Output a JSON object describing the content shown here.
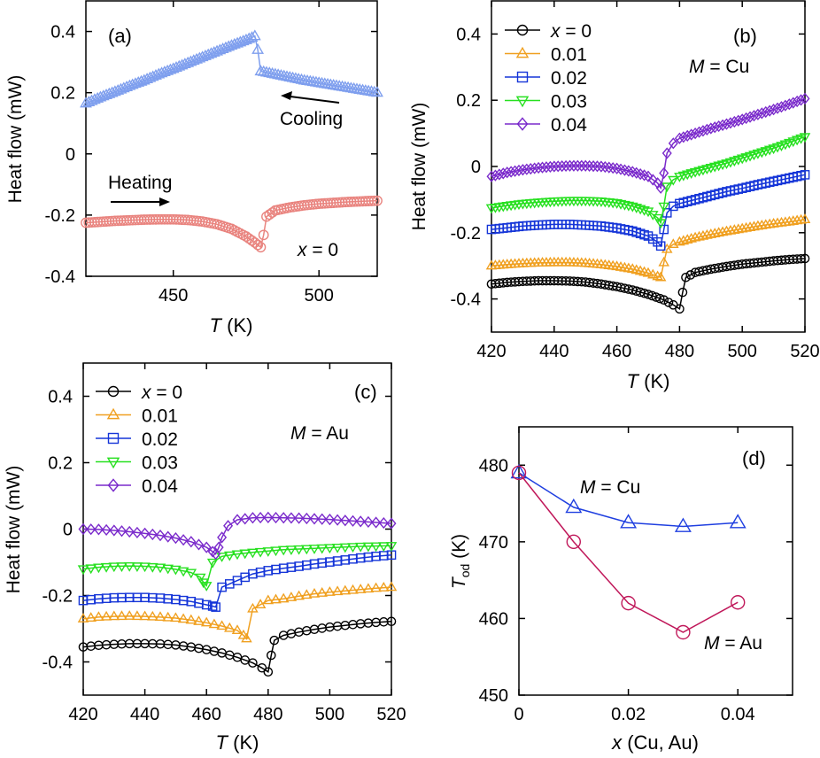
{
  "colors": {
    "heat": "#e9847f",
    "cool": "#7f9fee",
    "x0": "#000000",
    "x01": "#f0a020",
    "x02": "#1535d8",
    "x03": "#27e020",
    "x04": "#7a2acb",
    "cu": "#1f3fe0",
    "au": "#c0185a"
  },
  "chart_data": [
    {
      "type": "line",
      "title": "(a)",
      "xlabel": "T (K)",
      "ylabel": "Heat flow (mW)",
      "xlim": [
        420,
        520
      ],
      "ylim": [
        -0.4,
        0.5
      ],
      "xticks": [
        "450",
        "500"
      ],
      "yticks": [
        "-0.4",
        "-0.2",
        "0",
        "0.2",
        "0.4"
      ],
      "annotations": [
        "Heating",
        "Cooling",
        "x = 0"
      ],
      "series": [
        {
          "name": "Heating",
          "color": "#e9847f",
          "marker": "circle",
          "x": [
            420,
            425,
            430,
            435,
            440,
            445,
            450,
            455,
            460,
            465,
            470,
            475,
            478,
            480,
            481,
            482,
            485,
            490,
            495,
            500,
            505,
            510,
            515,
            520
          ],
          "y": [
            -0.225,
            -0.222,
            -0.219,
            -0.217,
            -0.215,
            -0.214,
            -0.214,
            -0.216,
            -0.221,
            -0.23,
            -0.245,
            -0.27,
            -0.29,
            -0.305,
            -0.265,
            -0.205,
            -0.185,
            -0.175,
            -0.168,
            -0.163,
            -0.16,
            -0.157,
            -0.155,
            -0.153
          ]
        },
        {
          "name": "Cooling",
          "color": "#7f9fee",
          "marker": "triangle-up",
          "x": [
            420,
            425,
            430,
            435,
            440,
            445,
            450,
            455,
            460,
            465,
            470,
            475,
            477,
            478,
            479,
            480,
            485,
            490,
            495,
            500,
            505,
            510,
            515,
            520
          ],
          "y": [
            0.165,
            0.185,
            0.203,
            0.222,
            0.24,
            0.26,
            0.278,
            0.297,
            0.316,
            0.335,
            0.354,
            0.372,
            0.38,
            0.385,
            0.34,
            0.27,
            0.26,
            0.25,
            0.24,
            0.232,
            0.224,
            0.216,
            0.208,
            0.2
          ]
        }
      ]
    },
    {
      "type": "line",
      "title": "(b)",
      "xlabel": "T (K)",
      "ylabel": "Heat flow (mW)",
      "xlim": [
        420,
        520
      ],
      "ylim": [
        -0.5,
        0.5
      ],
      "xticks": [
        "420",
        "440",
        "460",
        "480",
        "500",
        "520"
      ],
      "yticks": [
        "-0.4",
        "-0.2",
        "0",
        "0.2",
        "0.4"
      ],
      "annotations": [
        "M = Cu"
      ],
      "legend": [
        "x = 0",
        "0.01",
        "0.02",
        "0.03",
        "0.04"
      ],
      "series": [
        {
          "name": "x = 0",
          "color": "#000000",
          "marker": "circle",
          "x": [
            420,
            425,
            430,
            435,
            440,
            445,
            450,
            455,
            460,
            465,
            470,
            475,
            478,
            480,
            481,
            482,
            485,
            490,
            495,
            500,
            505,
            510,
            515,
            520
          ],
          "y": [
            -0.355,
            -0.35,
            -0.347,
            -0.345,
            -0.345,
            -0.346,
            -0.349,
            -0.355,
            -0.363,
            -0.373,
            -0.386,
            -0.403,
            -0.418,
            -0.43,
            -0.38,
            -0.335,
            -0.32,
            -0.31,
            -0.302,
            -0.295,
            -0.29,
            -0.285,
            -0.281,
            -0.278
          ]
        },
        {
          "name": "0.01",
          "color": "#f0a020",
          "marker": "triangle-up",
          "x": [
            420,
            425,
            430,
            435,
            440,
            445,
            450,
            455,
            460,
            465,
            470,
            473,
            474,
            475,
            476,
            478,
            480,
            485,
            490,
            495,
            500,
            505,
            510,
            515,
            520
          ],
          "y": [
            -0.3,
            -0.296,
            -0.293,
            -0.291,
            -0.29,
            -0.29,
            -0.292,
            -0.296,
            -0.302,
            -0.31,
            -0.322,
            -0.332,
            -0.335,
            -0.29,
            -0.25,
            -0.235,
            -0.228,
            -0.215,
            -0.205,
            -0.196,
            -0.188,
            -0.18,
            -0.173,
            -0.167,
            -0.16
          ]
        },
        {
          "name": "0.02",
          "color": "#1535d8",
          "marker": "square",
          "x": [
            420,
            425,
            430,
            435,
            440,
            445,
            450,
            455,
            460,
            465,
            470,
            473,
            474,
            475,
            476,
            478,
            480,
            485,
            490,
            495,
            500,
            505,
            510,
            515,
            520
          ],
          "y": [
            -0.19,
            -0.185,
            -0.18,
            -0.177,
            -0.175,
            -0.175,
            -0.177,
            -0.18,
            -0.186,
            -0.195,
            -0.21,
            -0.228,
            -0.24,
            -0.19,
            -0.14,
            -0.12,
            -0.112,
            -0.1,
            -0.088,
            -0.076,
            -0.066,
            -0.055,
            -0.045,
            -0.035,
            -0.025
          ]
        },
        {
          "name": "0.03",
          "color": "#27e020",
          "marker": "triangle-down",
          "x": [
            420,
            425,
            430,
            435,
            440,
            445,
            450,
            455,
            460,
            465,
            470,
            473,
            474,
            475,
            476,
            478,
            480,
            485,
            490,
            495,
            500,
            505,
            510,
            515,
            520
          ],
          "y": [
            -0.125,
            -0.118,
            -0.112,
            -0.108,
            -0.105,
            -0.103,
            -0.103,
            -0.105,
            -0.11,
            -0.12,
            -0.135,
            -0.155,
            -0.17,
            -0.12,
            -0.06,
            -0.04,
            -0.03,
            -0.016,
            -0.003,
            0.01,
            0.025,
            0.04,
            0.055,
            0.072,
            0.09
          ]
        },
        {
          "name": "0.04",
          "color": "#7a2acb",
          "marker": "diamond",
          "x": [
            420,
            425,
            430,
            435,
            440,
            445,
            450,
            455,
            460,
            465,
            470,
            473,
            474,
            475,
            476,
            478,
            480,
            485,
            490,
            495,
            500,
            505,
            510,
            515,
            520
          ],
          "y": [
            -0.03,
            -0.018,
            -0.01,
            -0.004,
            0.0,
            0.002,
            0.002,
            0.0,
            -0.006,
            -0.016,
            -0.03,
            -0.05,
            -0.065,
            -0.02,
            0.04,
            0.07,
            0.085,
            0.1,
            0.115,
            0.128,
            0.142,
            0.157,
            0.172,
            0.188,
            0.205
          ]
        }
      ]
    },
    {
      "type": "line",
      "title": "(c)",
      "xlabel": "T (K)",
      "ylabel": "Heat flow (mW)",
      "xlim": [
        420,
        520
      ],
      "ylim": [
        -0.5,
        0.5
      ],
      "xticks": [
        "420",
        "440",
        "460",
        "480",
        "500",
        "520"
      ],
      "yticks": [
        "-0.4",
        "-0.2",
        "0",
        "0.2",
        "0.4"
      ],
      "annotations": [
        "M = Au"
      ],
      "legend": [
        "x = 0",
        "0.01",
        "0.02",
        "0.03",
        "0.04"
      ],
      "series": [
        {
          "name": "x = 0",
          "color": "#000000",
          "marker": "circle",
          "x": [
            420,
            425,
            430,
            435,
            440,
            445,
            450,
            455,
            460,
            465,
            470,
            475,
            478,
            480,
            481,
            482,
            485,
            490,
            495,
            500,
            505,
            510,
            515,
            520
          ],
          "y": [
            -0.355,
            -0.35,
            -0.347,
            -0.345,
            -0.345,
            -0.346,
            -0.349,
            -0.355,
            -0.363,
            -0.373,
            -0.386,
            -0.403,
            -0.418,
            -0.43,
            -0.38,
            -0.335,
            -0.32,
            -0.31,
            -0.302,
            -0.295,
            -0.29,
            -0.285,
            -0.281,
            -0.278
          ]
        },
        {
          "name": "0.01",
          "color": "#f0a020",
          "marker": "triangle-up",
          "x": [
            420,
            425,
            430,
            435,
            440,
            445,
            450,
            455,
            460,
            465,
            470,
            472,
            473,
            475,
            480,
            485,
            490,
            495,
            500,
            505,
            510,
            515,
            520
          ],
          "y": [
            -0.27,
            -0.265,
            -0.263,
            -0.262,
            -0.263,
            -0.265,
            -0.268,
            -0.274,
            -0.282,
            -0.292,
            -0.305,
            -0.32,
            -0.33,
            -0.24,
            -0.215,
            -0.21,
            -0.202,
            -0.195,
            -0.19,
            -0.186,
            -0.182,
            -0.178,
            -0.175
          ]
        },
        {
          "name": "0.02",
          "color": "#1535d8",
          "marker": "square",
          "x": [
            420,
            425,
            430,
            435,
            440,
            445,
            450,
            455,
            460,
            462,
            463,
            465,
            470,
            475,
            480,
            485,
            490,
            495,
            500,
            505,
            510,
            515,
            520
          ],
          "y": [
            -0.215,
            -0.21,
            -0.207,
            -0.206,
            -0.206,
            -0.208,
            -0.212,
            -0.218,
            -0.228,
            -0.232,
            -0.235,
            -0.175,
            -0.155,
            -0.135,
            -0.125,
            -0.118,
            -0.112,
            -0.105,
            -0.099,
            -0.093,
            -0.087,
            -0.082,
            -0.078
          ]
        },
        {
          "name": "0.03",
          "color": "#27e020",
          "marker": "triangle-down",
          "x": [
            420,
            425,
            430,
            435,
            440,
            445,
            450,
            455,
            458,
            459,
            460,
            462,
            465,
            470,
            475,
            480,
            485,
            490,
            495,
            500,
            505,
            510,
            515,
            520
          ],
          "y": [
            -0.12,
            -0.115,
            -0.112,
            -0.111,
            -0.112,
            -0.115,
            -0.121,
            -0.131,
            -0.145,
            -0.16,
            -0.17,
            -0.1,
            -0.082,
            -0.075,
            -0.07,
            -0.066,
            -0.062,
            -0.06,
            -0.058,
            -0.056,
            -0.054,
            -0.052,
            -0.051,
            -0.05
          ]
        },
        {
          "name": "0.04",
          "color": "#7a2acb",
          "marker": "diamond",
          "x": [
            420,
            425,
            430,
            435,
            440,
            445,
            450,
            455,
            460,
            462,
            463,
            464,
            465,
            467,
            470,
            475,
            480,
            485,
            490,
            495,
            500,
            505,
            510,
            515,
            520
          ],
          "y": [
            0.0,
            -0.001,
            -0.004,
            -0.008,
            -0.013,
            -0.019,
            -0.027,
            -0.038,
            -0.055,
            -0.068,
            -0.075,
            -0.055,
            -0.025,
            0.01,
            0.028,
            0.034,
            0.035,
            0.034,
            0.033,
            0.031,
            0.029,
            0.026,
            0.023,
            0.02,
            0.017
          ]
        }
      ]
    },
    {
      "type": "line",
      "title": "(d)",
      "xlabel": "x (Cu, Au)",
      "ylabel": "T_od (K)",
      "xlim": [
        0,
        0.05
      ],
      "ylim": [
        450,
        485
      ],
      "xticks": [
        "0",
        "0.02",
        "0.04"
      ],
      "yticks": [
        "450",
        "460",
        "470",
        "480"
      ],
      "series": [
        {
          "name": "M = Cu",
          "color": "#1f3fe0",
          "marker": "triangle-up",
          "x": [
            0,
            0.01,
            0.02,
            0.03,
            0.04
          ],
          "y": [
            479,
            474.5,
            472.5,
            472,
            472.5
          ]
        },
        {
          "name": "M = Au",
          "color": "#c0185a",
          "marker": "circle",
          "x": [
            0,
            0.01,
            0.02,
            0.03,
            0.04
          ],
          "y": [
            479,
            470,
            462,
            458.2,
            462.1
          ]
        }
      ]
    }
  ]
}
